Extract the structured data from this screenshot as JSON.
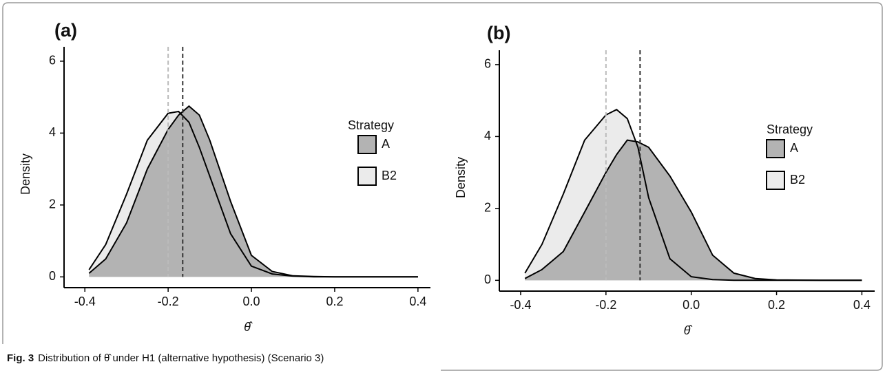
{
  "chart_data": [
    {
      "type": "density",
      "panel_label": "(a)",
      "x_label": "θ̂",
      "y_label": "Density",
      "legend_title": "Strategy",
      "x": [
        -0.39,
        -0.35,
        -0.3,
        -0.25,
        -0.2,
        -0.175,
        -0.15,
        -0.125,
        -0.1,
        -0.05,
        0,
        0.05,
        0.1,
        0.15,
        0.2,
        0.3,
        0.4
      ],
      "series": [
        {
          "name": "A",
          "color": "#b3b3b3",
          "mean_line_color": "#333333",
          "mean": -0.165,
          "values": [
            0.1,
            0.5,
            1.5,
            3.0,
            4.1,
            4.5,
            4.75,
            4.5,
            3.8,
            2.1,
            0.6,
            0.15,
            0.03,
            0.01,
            0,
            0,
            0
          ]
        },
        {
          "name": "B2",
          "color": "#ebebeb",
          "mean_line_color": "#bbbbbb",
          "mean": -0.2,
          "values": [
            0.2,
            0.9,
            2.3,
            3.8,
            4.55,
            4.6,
            4.3,
            3.6,
            2.8,
            1.2,
            0.3,
            0.08,
            0.02,
            0,
            0,
            0,
            0
          ]
        }
      ],
      "xlim": [
        -0.45,
        0.43
      ],
      "xticks": [
        -0.4,
        -0.2,
        {
          "value": 0,
          "label": "0.0"
        },
        0.2,
        0.4
      ],
      "ylim": [
        -0.3,
        6.4
      ],
      "yticks": [
        0,
        2,
        4,
        6
      ]
    },
    {
      "type": "density",
      "panel_label": "(b)",
      "x_label": "θ̂",
      "y_label": "Density",
      "legend_title": "Strategy",
      "x": [
        -0.39,
        -0.35,
        -0.3,
        -0.25,
        -0.2,
        -0.175,
        -0.15,
        -0.125,
        -0.1,
        -0.05,
        0,
        0.05,
        0.1,
        0.15,
        0.2,
        0.3,
        0.4
      ],
      "series": [
        {
          "name": "A",
          "color": "#b3b3b3",
          "mean_line_color": "#333333",
          "mean": -0.12,
          "values": [
            0.05,
            0.3,
            0.8,
            1.9,
            3.0,
            3.5,
            3.9,
            3.85,
            3.7,
            2.9,
            1.9,
            0.7,
            0.2,
            0.05,
            0.01,
            0,
            0
          ]
        },
        {
          "name": "B2",
          "color": "#ebebeb",
          "mean_line_color": "#bbbbbb",
          "mean": -0.2,
          "values": [
            0.2,
            1.0,
            2.4,
            3.9,
            4.6,
            4.75,
            4.5,
            3.7,
            2.3,
            0.6,
            0.1,
            0.02,
            0,
            0,
            0,
            0,
            0
          ]
        }
      ],
      "xlim": [
        -0.45,
        0.43
      ],
      "xticks": [
        -0.4,
        -0.2,
        {
          "value": 0,
          "label": "0.0"
        },
        0.2,
        0.4
      ],
      "ylim": [
        -0.3,
        6.4
      ],
      "yticks": [
        0,
        2,
        4,
        6
      ]
    }
  ],
  "caption": {
    "label": "Fig. 3",
    "text": "Distribution of θ̂ under H1 (alternative hypothesis) (Scenario 3)"
  }
}
